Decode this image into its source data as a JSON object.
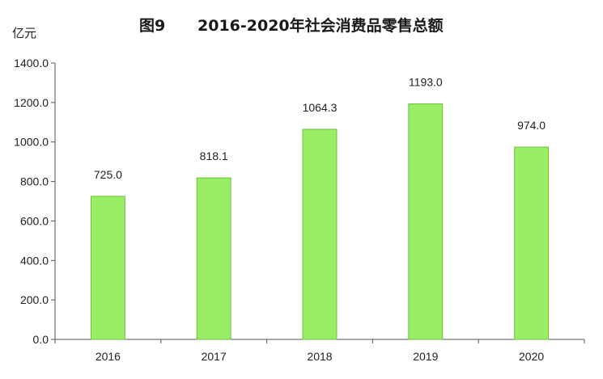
{
  "chart_data": {
    "type": "bar",
    "title_num": "图9",
    "title": "2016-2020年社会消费品零售总额",
    "unit": "亿元",
    "categories": [
      "2016",
      "2017",
      "2018",
      "2019",
      "2020"
    ],
    "values": [
      725.0,
      818.1,
      1064.3,
      1193.0,
      974.0
    ],
    "value_labels": [
      "725.0",
      "818.1",
      "1064.3",
      "1193.0",
      "974.0"
    ],
    "yticks": [
      "0.0",
      "200.0",
      "400.0",
      "600.0",
      "800.0",
      "1000.0",
      "1200.0",
      "1400.0"
    ],
    "ylim": [
      0,
      1400
    ],
    "bar_color": "#99ee66",
    "bar_stroke": "#6cc23a",
    "grid": false,
    "legend": "none"
  }
}
